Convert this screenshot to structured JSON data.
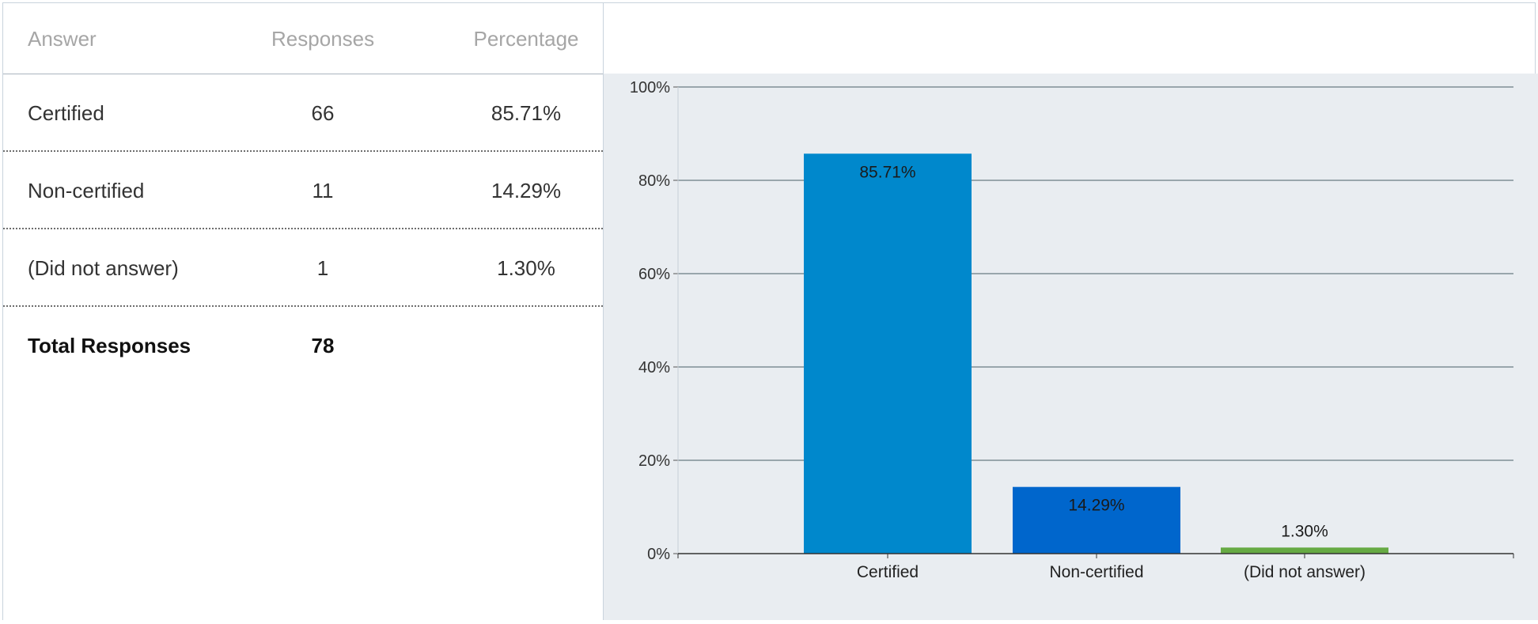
{
  "table": {
    "headers": {
      "answer": "Answer",
      "responses": "Responses",
      "percentage": "Percentage"
    },
    "rows": [
      {
        "answer": "Certified",
        "responses": "66",
        "percentage": "85.71%"
      },
      {
        "answer": "Non-certified",
        "responses": "11",
        "percentage": "14.29%"
      },
      {
        "answer": "(Did not answer)",
        "responses": "1",
        "percentage": "1.30%"
      }
    ],
    "total": {
      "label": "Total Responses",
      "value": "78"
    }
  },
  "chart_data": {
    "type": "bar",
    "categories": [
      "Certified",
      "Non-certified",
      "(Did not answer)"
    ],
    "values": [
      85.71,
      14.29,
      1.3
    ],
    "data_labels": [
      "85.71%",
      "14.29%",
      "1.30%"
    ],
    "colors": [
      "#0088cc",
      "#0066cc",
      "#66aa44"
    ],
    "ylim": [
      0,
      100
    ],
    "yticks": [
      0,
      20,
      40,
      60,
      80,
      100
    ],
    "ytick_labels": [
      "0%",
      "20%",
      "40%",
      "60%",
      "80%",
      "100%"
    ],
    "grid": true,
    "gridline_color": "#7f8f96",
    "background": "#e9edf1"
  }
}
